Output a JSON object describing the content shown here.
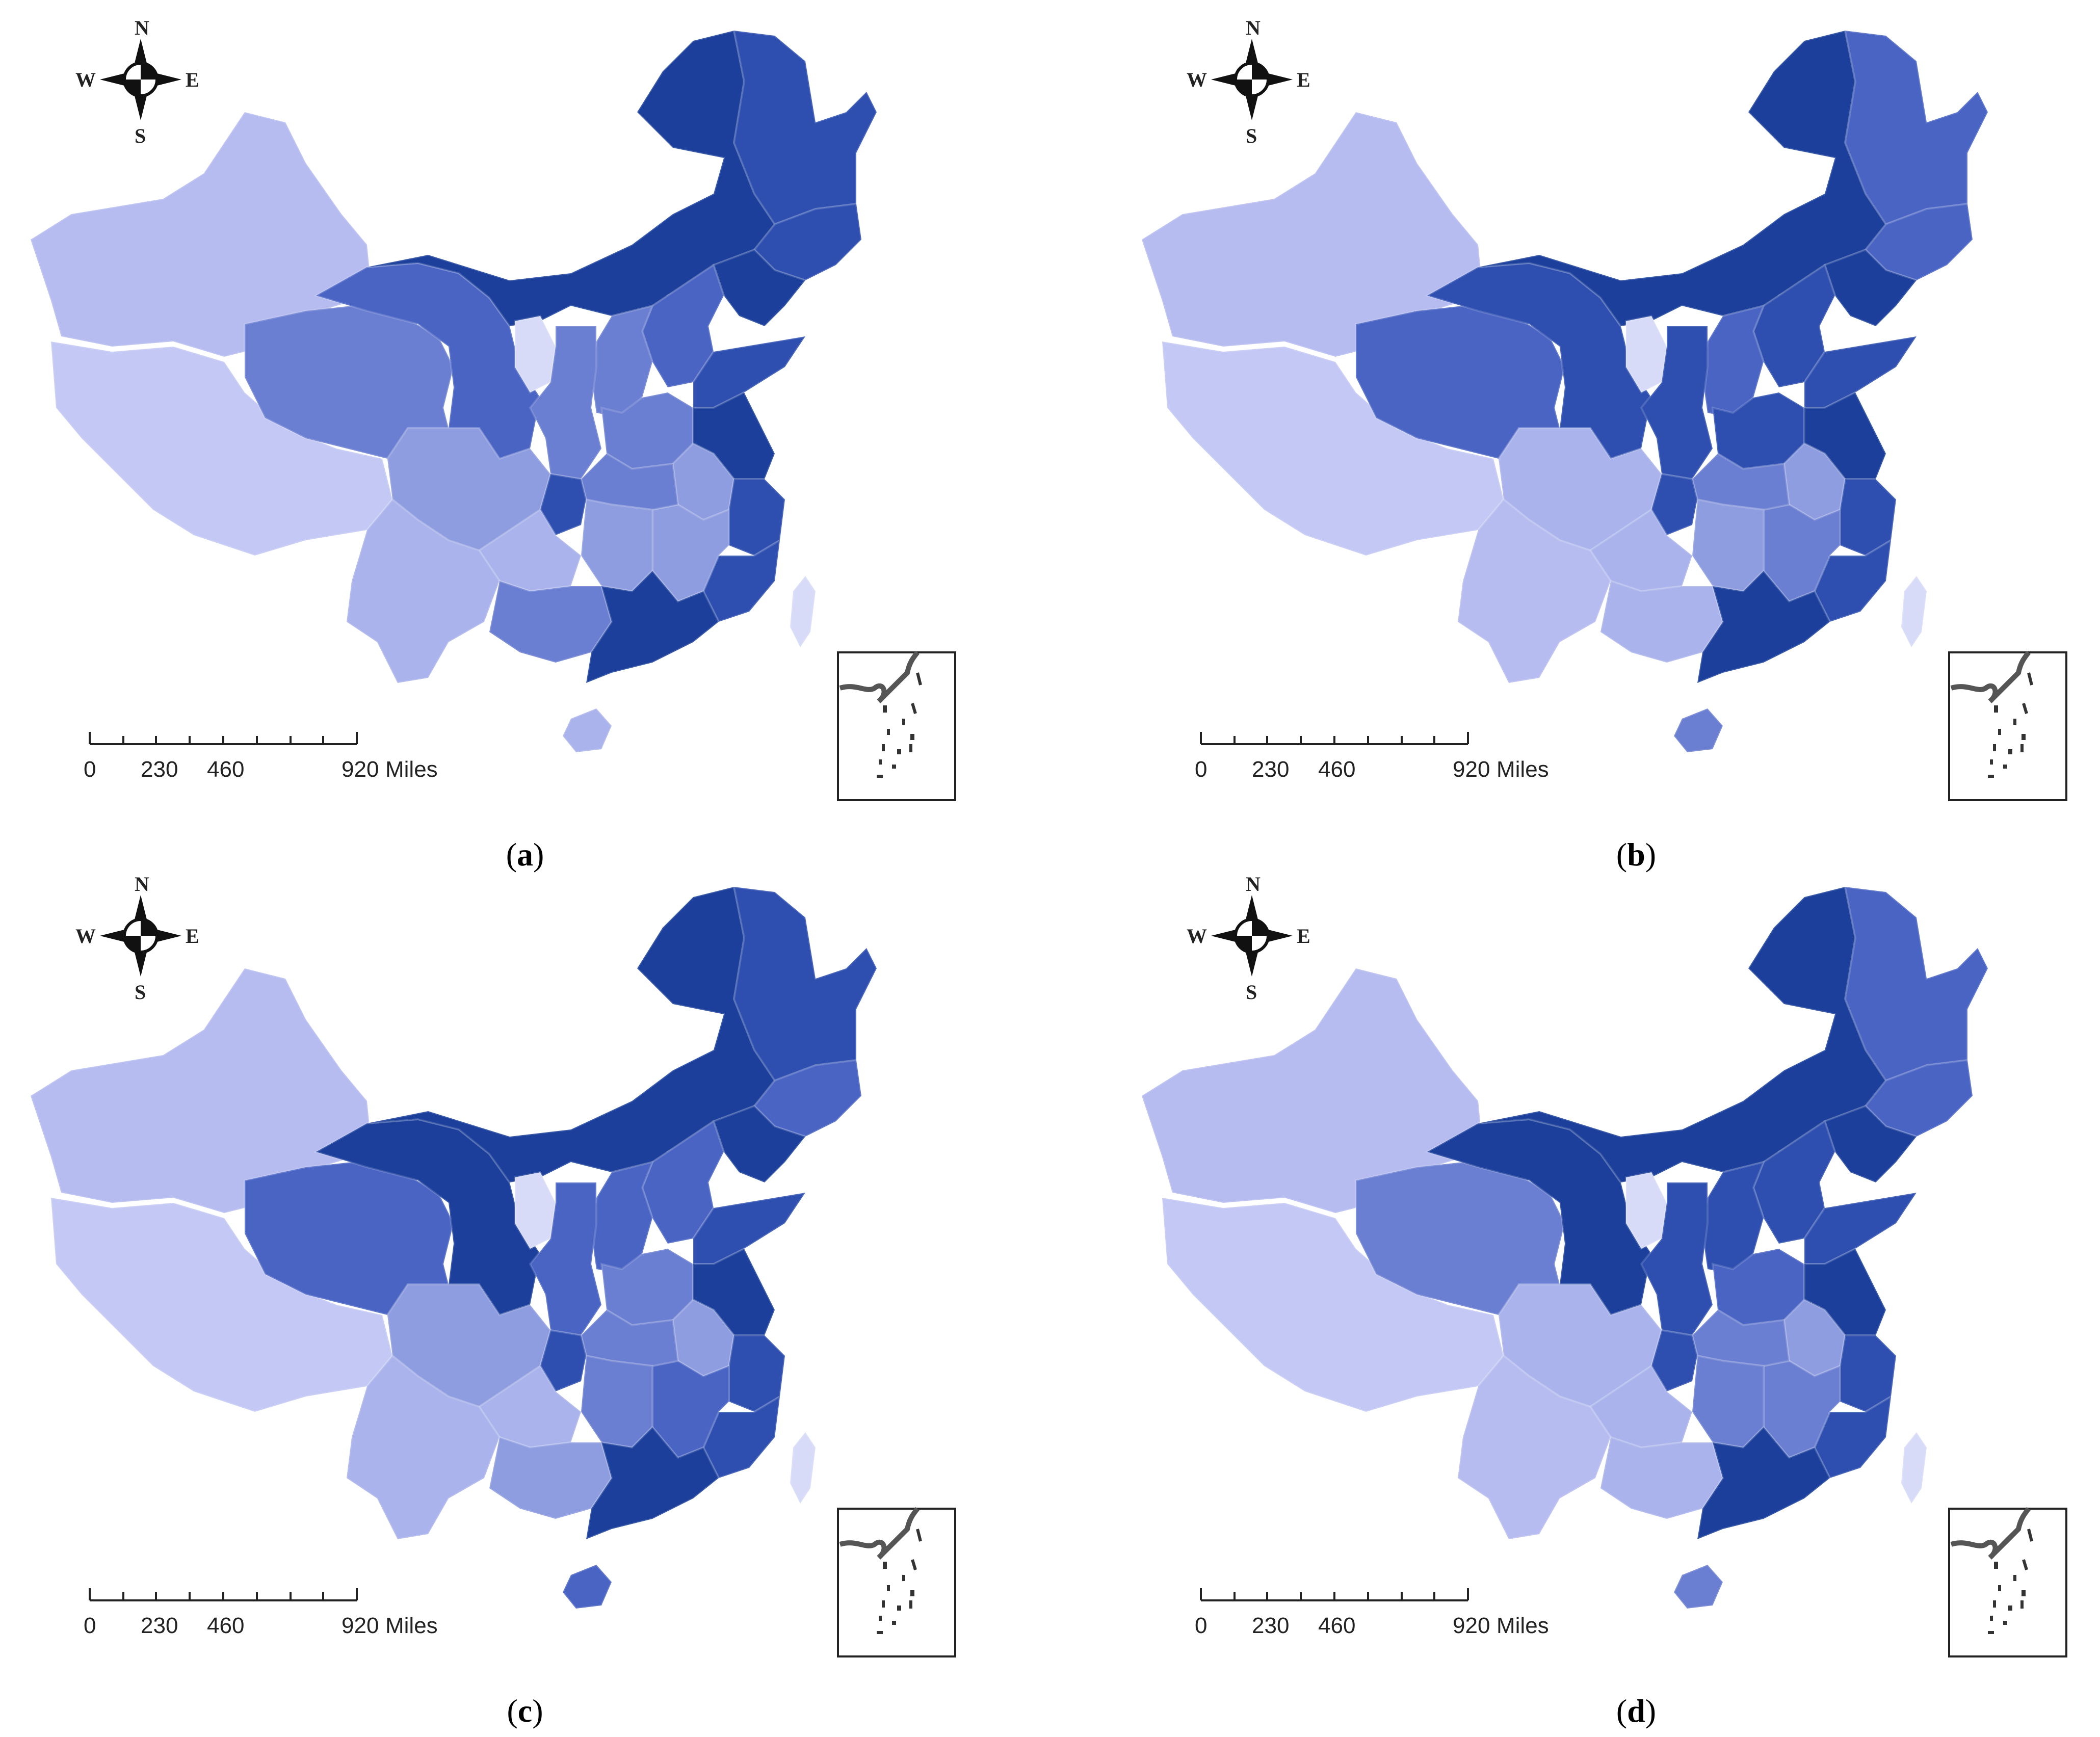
{
  "colors": {
    "c1": "#1b3f9b",
    "c2": "#2e4fb0",
    "c3": "#4a64c4",
    "c4": "#6a7ed2",
    "c5": "#8e9ce0",
    "c6": "#aab3ec",
    "c7": "#b6bcef",
    "c8": "#c4c8f4",
    "c9": "#d7dbf8"
  },
  "compass": {
    "n": "N",
    "s": "S",
    "e": "E",
    "w": "W"
  },
  "scale_bar": {
    "ticks": [
      "0",
      "230",
      "460",
      "920"
    ],
    "unit": "Miles"
  },
  "panels": [
    {
      "label": "a",
      "fills": {
        "xinjiang": "c7",
        "tibet": "c8",
        "qinghai": "c4",
        "gansu": "c3",
        "innermongolia": "c1",
        "heilongjiang": "c2",
        "jilin": "c2",
        "liaoning": "c1",
        "beijing": "c1",
        "hebei": "c3",
        "shanxi": "c4",
        "ningxia": "c9",
        "shaanxi": "c4",
        "henan": "c4",
        "shandong": "c2",
        "jiangsu": "c1",
        "anhui": "c5",
        "zhejiang": "c2",
        "fujian": "c2",
        "jiangxi": "c5",
        "hubei": "c4",
        "hunan": "c5",
        "sichuan": "c5",
        "chongqing": "c2",
        "guizhou": "c6",
        "yunnan": "c6",
        "guangxi": "c4",
        "guangdong": "c1",
        "hainan": "c6",
        "taiwan": "c9"
      }
    },
    {
      "label": "b",
      "fills": {
        "xinjiang": "c7",
        "tibet": "c8",
        "qinghai": "c3",
        "gansu": "c2",
        "innermongolia": "c1",
        "heilongjiang": "c3",
        "jilin": "c3",
        "liaoning": "c1",
        "beijing": "c1",
        "hebei": "c2",
        "shanxi": "c3",
        "ningxia": "c9",
        "shaanxi": "c2",
        "henan": "c2",
        "shandong": "c2",
        "jiangsu": "c1",
        "anhui": "c5",
        "zhejiang": "c2",
        "fujian": "c2",
        "jiangxi": "c4",
        "hubei": "c4",
        "hunan": "c5",
        "sichuan": "c6",
        "chongqing": "c2",
        "guizhou": "c6",
        "yunnan": "c7",
        "guangxi": "c6",
        "guangdong": "c1",
        "hainan": "c4",
        "taiwan": "c9"
      }
    },
    {
      "label": "c",
      "fills": {
        "xinjiang": "c7",
        "tibet": "c8",
        "qinghai": "c3",
        "gansu": "c1",
        "innermongolia": "c1",
        "heilongjiang": "c2",
        "jilin": "c3",
        "liaoning": "c1",
        "beijing": "c1",
        "hebei": "c3",
        "shanxi": "c3",
        "ningxia": "c9",
        "shaanxi": "c3",
        "henan": "c4",
        "shandong": "c2",
        "jiangsu": "c1",
        "anhui": "c5",
        "zhejiang": "c2",
        "fujian": "c2",
        "jiangxi": "c3",
        "hubei": "c4",
        "hunan": "c4",
        "sichuan": "c5",
        "chongqing": "c2",
        "guizhou": "c6",
        "yunnan": "c6",
        "guangxi": "c5",
        "guangdong": "c1",
        "hainan": "c3",
        "taiwan": "c9"
      }
    },
    {
      "label": "d",
      "fills": {
        "xinjiang": "c7",
        "tibet": "c8",
        "qinghai": "c4",
        "gansu": "c1",
        "innermongolia": "c1",
        "heilongjiang": "c3",
        "jilin": "c3",
        "liaoning": "c1",
        "beijing": "c1",
        "hebei": "c2",
        "shanxi": "c2",
        "ningxia": "c9",
        "shaanxi": "c2",
        "henan": "c3",
        "shandong": "c2",
        "jiangsu": "c1",
        "anhui": "c5",
        "zhejiang": "c2",
        "fujian": "c2",
        "jiangxi": "c4",
        "hubei": "c4",
        "hunan": "c4",
        "sichuan": "c6",
        "chongqing": "c2",
        "guizhou": "c6",
        "yunnan": "c7",
        "guangxi": "c6",
        "guangdong": "c1",
        "hainan": "c4",
        "taiwan": "c9"
      }
    }
  ]
}
